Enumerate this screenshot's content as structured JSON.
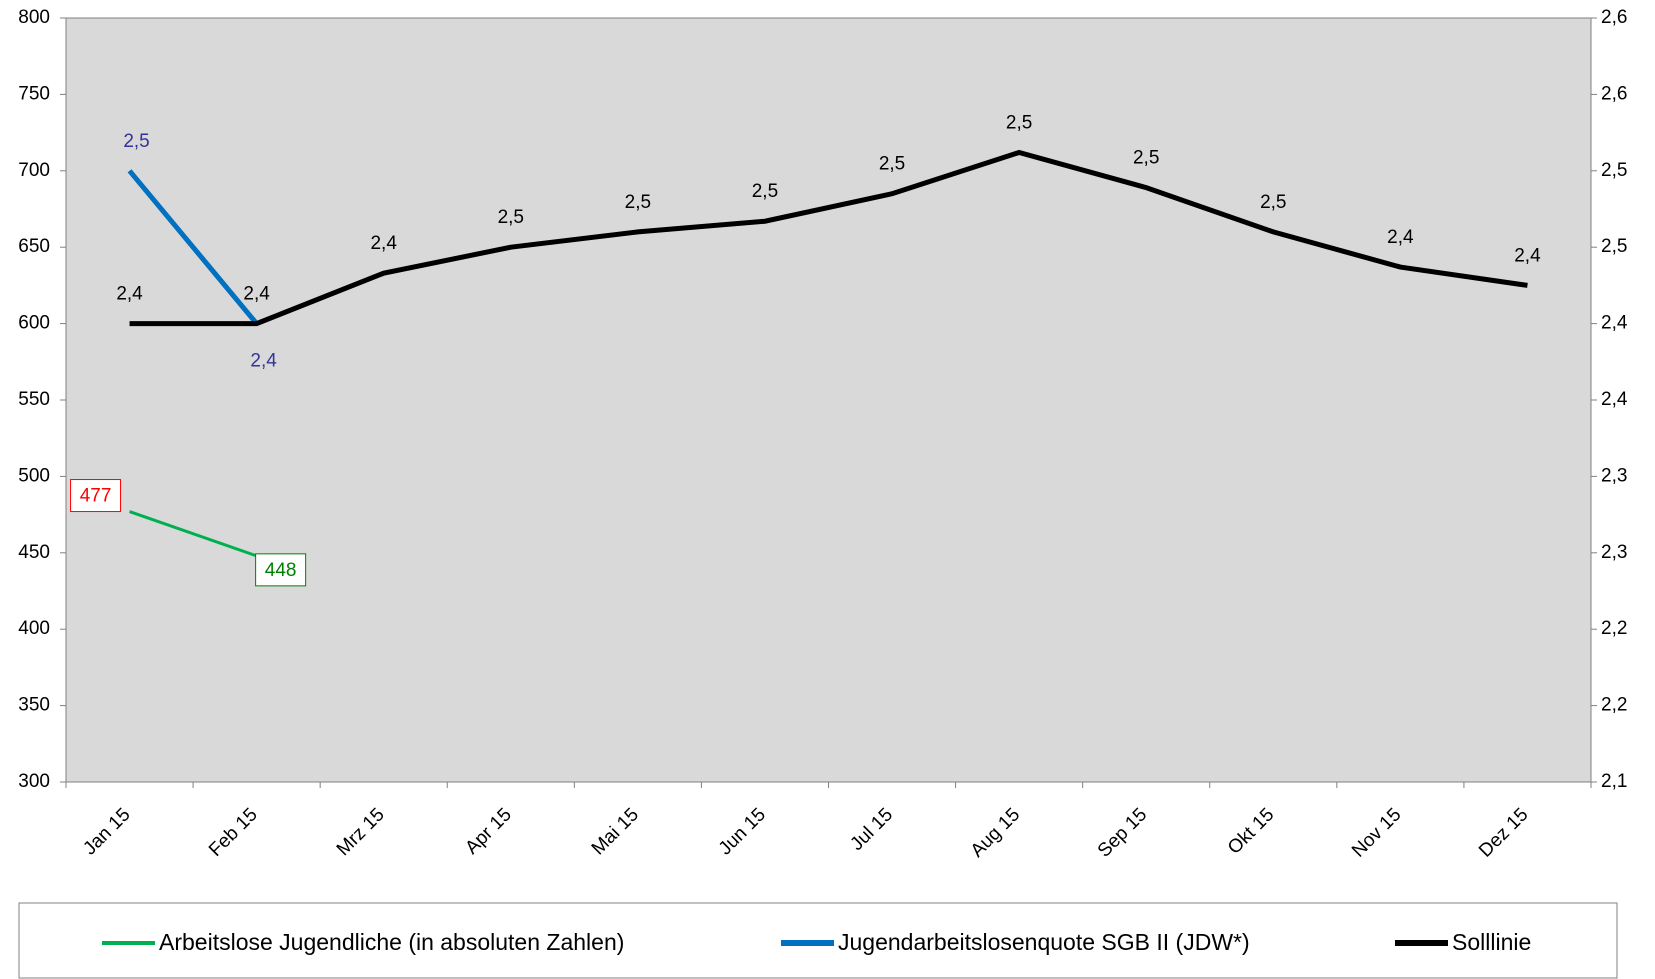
{
  "chart_data": {
    "type": "line",
    "categories": [
      "Jan 15",
      "Feb 15",
      "Mrz 15",
      "Apr 15",
      "Mai 15",
      "Jun 15",
      "Jul 15",
      "Aug 15",
      "Sep 15",
      "Okt 15",
      "Nov 15",
      "Dez 15"
    ],
    "series": [
      {
        "name": "Arbeitslose Jugendliche (in absoluten Zahlen)",
        "color": "#00b050",
        "axis": "y",
        "values": [
          477,
          448,
          null,
          null,
          null,
          null,
          null,
          null,
          null,
          null,
          null,
          null
        ]
      },
      {
        "name": "Jugendarbeitslosenquote SGB II (JDW*)",
        "color": "#0070c0",
        "axis": "y2",
        "values": [
          2.5,
          2.4,
          null,
          null,
          null,
          null,
          null,
          null,
          null,
          null,
          null,
          null
        ],
        "value_labels": [
          "2,5",
          "2,4",
          null,
          null,
          null,
          null,
          null,
          null,
          null,
          null,
          null,
          null
        ]
      },
      {
        "name": "Solllinie",
        "color": "#000000",
        "axis": "y2",
        "values": [
          2.4,
          2.4,
          2.433,
          2.45,
          2.46,
          2.467,
          2.485,
          2.512,
          2.489,
          2.46,
          2.437,
          2.425
        ],
        "value_labels": [
          "2,4",
          "2,4",
          "2,4",
          "2,5",
          "2,5",
          "2,5",
          "2,5",
          "2,5",
          "2,5",
          "2,5",
          "2,4",
          "2,4"
        ]
      }
    ],
    "ylim": [
      300,
      800
    ],
    "yticks": [
      300,
      350,
      400,
      450,
      500,
      550,
      600,
      650,
      700,
      750,
      800
    ],
    "y2lim": [
      2.1,
      2.6
    ],
    "y2ticks": [
      {
        "value": 2.1,
        "label": "2,1"
      },
      {
        "value": 2.15,
        "label": "2,2"
      },
      {
        "value": 2.2,
        "label": "2,2"
      },
      {
        "value": 2.25,
        "label": "2,3"
      },
      {
        "value": 2.3,
        "label": "2,3"
      },
      {
        "value": 2.35,
        "label": "2,4"
      },
      {
        "value": 2.4,
        "label": "2,4"
      },
      {
        "value": 2.45,
        "label": "2,5"
      },
      {
        "value": 2.5,
        "label": "2,5"
      },
      {
        "value": 2.55,
        "label": "2,6"
      },
      {
        "value": 2.6,
        "label": "2,6"
      }
    ],
    "plot_background": "#d9d9d9",
    "legend": "bottom"
  }
}
